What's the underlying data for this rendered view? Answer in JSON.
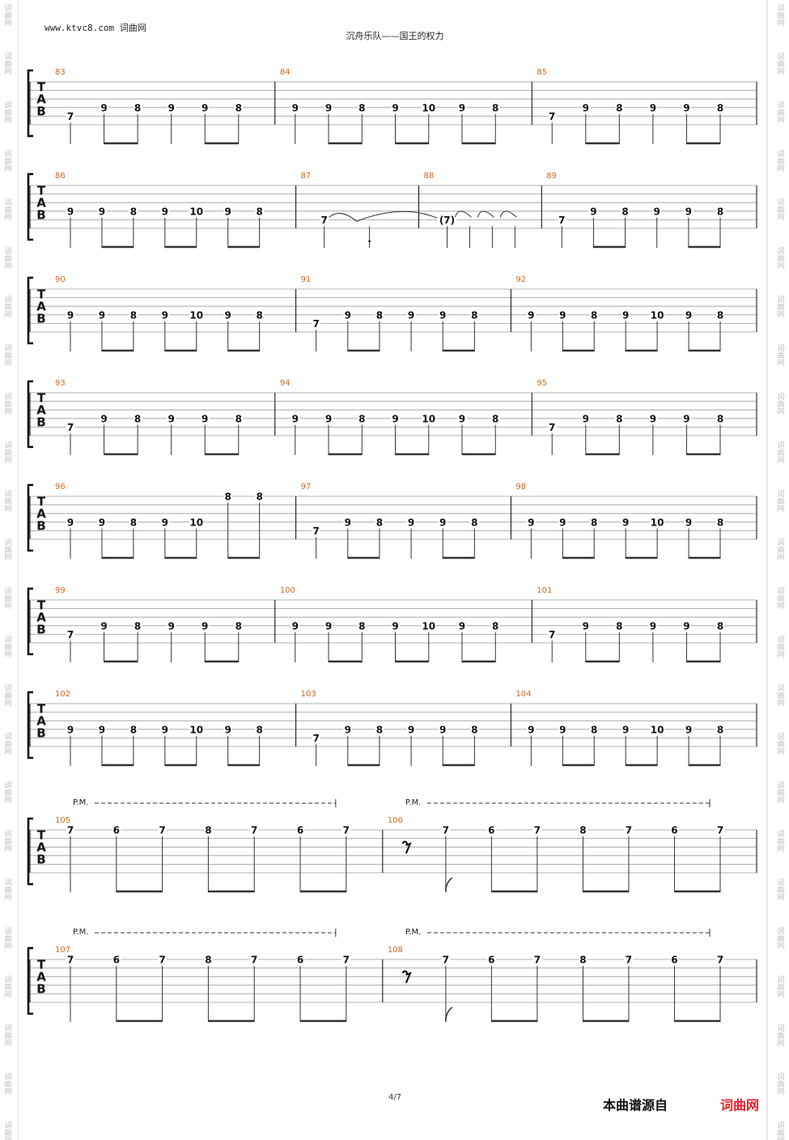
{
  "header": {
    "site": "www.ktvc8.com 词曲网",
    "title": "沉舟乐队——国王的权力"
  },
  "watermark": "词曲网",
  "tab_letters": [
    "T",
    "A",
    "B"
  ],
  "systems": [
    {
      "measures": [
        {
          "number": 83,
          "notes": [
            {
              "fret": 7,
              "string": 5
            },
            {
              "fret": 9,
              "string": 4
            },
            {
              "fret": 8,
              "string": 4
            },
            {
              "fret": 9,
              "string": 4
            },
            {
              "fret": 9,
              "string": 4
            },
            {
              "fret": 8,
              "string": 4
            }
          ]
        },
        {
          "number": 84,
          "notes": [
            {
              "fret": 9,
              "string": 4
            },
            {
              "fret": 9,
              "string": 4
            },
            {
              "fret": 8,
              "string": 4
            },
            {
              "fret": 9,
              "string": 4
            },
            {
              "fret": 10,
              "string": 4
            },
            {
              "fret": 9,
              "string": 4
            },
            {
              "fret": 8,
              "string": 4
            }
          ]
        },
        {
          "number": 85,
          "notes": [
            {
              "fret": 7,
              "string": 5
            },
            {
              "fret": 9,
              "string": 4
            },
            {
              "fret": 8,
              "string": 4
            },
            {
              "fret": 9,
              "string": 4
            },
            {
              "fret": 9,
              "string": 4
            },
            {
              "fret": 8,
              "string": 4
            }
          ]
        }
      ]
    },
    {
      "measures": [
        {
          "number": 86,
          "notes": [
            {
              "fret": 9,
              "string": 4
            },
            {
              "fret": 9,
              "string": 4
            },
            {
              "fret": 8,
              "string": 4
            },
            {
              "fret": 9,
              "string": 4
            },
            {
              "fret": 10,
              "string": 4
            },
            {
              "fret": 9,
              "string": 4
            },
            {
              "fret": 8,
              "string": 4
            }
          ]
        },
        {
          "number": 87,
          "notes": [
            {
              "fret": 7,
              "string": 5
            }
          ]
        },
        {
          "number": 88,
          "notes": [
            {
              "fret": "(7)",
              "string": 5
            }
          ]
        },
        {
          "number": 89,
          "notes": [
            {
              "fret": 7,
              "string": 5
            },
            {
              "fret": 9,
              "string": 4
            },
            {
              "fret": 8,
              "string": 4
            },
            {
              "fret": 9,
              "string": 4
            },
            {
              "fret": 9,
              "string": 4
            },
            {
              "fret": 8,
              "string": 4
            }
          ]
        }
      ]
    },
    {
      "measures": [
        {
          "number": 90,
          "notes": [
            {
              "fret": 9,
              "string": 4
            },
            {
              "fret": 9,
              "string": 4
            },
            {
              "fret": 8,
              "string": 4
            },
            {
              "fret": 9,
              "string": 4
            },
            {
              "fret": 10,
              "string": 4
            },
            {
              "fret": 9,
              "string": 4
            },
            {
              "fret": 8,
              "string": 4
            }
          ]
        },
        {
          "number": 91,
          "notes": [
            {
              "fret": 7,
              "string": 5
            },
            {
              "fret": 9,
              "string": 4
            },
            {
              "fret": 8,
              "string": 4
            },
            {
              "fret": 9,
              "string": 4
            },
            {
              "fret": 9,
              "string": 4
            },
            {
              "fret": 8,
              "string": 4
            }
          ]
        },
        {
          "number": 92,
          "notes": [
            {
              "fret": 9,
              "string": 4
            },
            {
              "fret": 9,
              "string": 4
            },
            {
              "fret": 8,
              "string": 4
            },
            {
              "fret": 9,
              "string": 4
            },
            {
              "fret": 10,
              "string": 4
            },
            {
              "fret": 9,
              "string": 4
            },
            {
              "fret": 8,
              "string": 4
            }
          ]
        }
      ]
    },
    {
      "measures": [
        {
          "number": 93,
          "notes": [
            {
              "fret": 7,
              "string": 5
            },
            {
              "fret": 9,
              "string": 4
            },
            {
              "fret": 8,
              "string": 4
            },
            {
              "fret": 9,
              "string": 4
            },
            {
              "fret": 9,
              "string": 4
            },
            {
              "fret": 8,
              "string": 4
            }
          ]
        },
        {
          "number": 94,
          "notes": [
            {
              "fret": 9,
              "string": 4
            },
            {
              "fret": 9,
              "string": 4
            },
            {
              "fret": 8,
              "string": 4
            },
            {
              "fret": 9,
              "string": 4
            },
            {
              "fret": 10,
              "string": 4
            },
            {
              "fret": 9,
              "string": 4
            },
            {
              "fret": 8,
              "string": 4
            }
          ]
        },
        {
          "number": 95,
          "notes": [
            {
              "fret": 7,
              "string": 5
            },
            {
              "fret": 9,
              "string": 4
            },
            {
              "fret": 8,
              "string": 4
            },
            {
              "fret": 9,
              "string": 4
            },
            {
              "fret": 9,
              "string": 4
            },
            {
              "fret": 8,
              "string": 4
            }
          ]
        }
      ]
    },
    {
      "measures": [
        {
          "number": 96,
          "notes": [
            {
              "fret": 9,
              "string": 4
            },
            {
              "fret": 9,
              "string": 4
            },
            {
              "fret": 8,
              "string": 4
            },
            {
              "fret": 9,
              "string": 4
            },
            {
              "fret": 10,
              "string": 4
            },
            {
              "fret": 8,
              "string": 1
            },
            {
              "fret": 8,
              "string": 1
            }
          ]
        },
        {
          "number": 97,
          "notes": [
            {
              "fret": 7,
              "string": 5
            },
            {
              "fret": 9,
              "string": 4
            },
            {
              "fret": 8,
              "string": 4
            },
            {
              "fret": 9,
              "string": 4
            },
            {
              "fret": 9,
              "string": 4
            },
            {
              "fret": 8,
              "string": 4
            }
          ]
        },
        {
          "number": 98,
          "notes": [
            {
              "fret": 9,
              "string": 4
            },
            {
              "fret": 9,
              "string": 4
            },
            {
              "fret": 8,
              "string": 4
            },
            {
              "fret": 9,
              "string": 4
            },
            {
              "fret": 10,
              "string": 4
            },
            {
              "fret": 9,
              "string": 4
            },
            {
              "fret": 8,
              "string": 4
            }
          ]
        }
      ]
    },
    {
      "measures": [
        {
          "number": 99,
          "notes": [
            {
              "fret": 7,
              "string": 5
            },
            {
              "fret": 9,
              "string": 4
            },
            {
              "fret": 8,
              "string": 4
            },
            {
              "fret": 9,
              "string": 4
            },
            {
              "fret": 9,
              "string": 4
            },
            {
              "fret": 8,
              "string": 4
            }
          ]
        },
        {
          "number": 100,
          "notes": [
            {
              "fret": 9,
              "string": 4
            },
            {
              "fret": 9,
              "string": 4
            },
            {
              "fret": 8,
              "string": 4
            },
            {
              "fret": 9,
              "string": 4
            },
            {
              "fret": 10,
              "string": 4
            },
            {
              "fret": 9,
              "string": 4
            },
            {
              "fret": 8,
              "string": 4
            }
          ]
        },
        {
          "number": 101,
          "notes": [
            {
              "fret": 7,
              "string": 5
            },
            {
              "fret": 9,
              "string": 4
            },
            {
              "fret": 8,
              "string": 4
            },
            {
              "fret": 9,
              "string": 4
            },
            {
              "fret": 9,
              "string": 4
            },
            {
              "fret": 8,
              "string": 4
            }
          ]
        }
      ]
    },
    {
      "measures": [
        {
          "number": 102,
          "notes": [
            {
              "fret": 9,
              "string": 4
            },
            {
              "fret": 9,
              "string": 4
            },
            {
              "fret": 8,
              "string": 4
            },
            {
              "fret": 9,
              "string": 4
            },
            {
              "fret": 10,
              "string": 4
            },
            {
              "fret": 9,
              "string": 4
            },
            {
              "fret": 8,
              "string": 4
            }
          ]
        },
        {
          "number": 103,
          "notes": [
            {
              "fret": 7,
              "string": 5
            },
            {
              "fret": 9,
              "string": 4
            },
            {
              "fret": 8,
              "string": 4
            },
            {
              "fret": 9,
              "string": 4
            },
            {
              "fret": 9,
              "string": 4
            },
            {
              "fret": 8,
              "string": 4
            }
          ]
        },
        {
          "number": 104,
          "notes": [
            {
              "fret": 9,
              "string": 4
            },
            {
              "fret": 9,
              "string": 4
            },
            {
              "fret": 8,
              "string": 4
            },
            {
              "fret": 9,
              "string": 4
            },
            {
              "fret": 10,
              "string": 4
            },
            {
              "fret": 9,
              "string": 4
            },
            {
              "fret": 8,
              "string": 4
            }
          ]
        }
      ]
    },
    {
      "measures": [
        {
          "number": 105,
          "palm_mute": "P.M.",
          "notes": [
            {
              "fret": 7,
              "string": 1
            },
            {
              "fret": 6,
              "string": 1
            },
            {
              "fret": 7,
              "string": 1
            },
            {
              "fret": 8,
              "string": 1
            },
            {
              "fret": 7,
              "string": 1
            },
            {
              "fret": 6,
              "string": 1
            },
            {
              "fret": 7,
              "string": 1
            }
          ]
        },
        {
          "number": 106,
          "palm_mute": "P.M.",
          "lead_rest": true,
          "notes": [
            {
              "fret": 7,
              "string": 1
            },
            {
              "fret": 6,
              "string": 1
            },
            {
              "fret": 7,
              "string": 1
            },
            {
              "fret": 8,
              "string": 1
            },
            {
              "fret": 7,
              "string": 1
            },
            {
              "fret": 6,
              "string": 1
            },
            {
              "fret": 7,
              "string": 1
            }
          ]
        }
      ]
    },
    {
      "measures": [
        {
          "number": 107,
          "palm_mute": "P.M.",
          "notes": [
            {
              "fret": 7,
              "string": 1
            },
            {
              "fret": 6,
              "string": 1
            },
            {
              "fret": 7,
              "string": 1
            },
            {
              "fret": 8,
              "string": 1
            },
            {
              "fret": 7,
              "string": 1
            },
            {
              "fret": 6,
              "string": 1
            },
            {
              "fret": 7,
              "string": 1
            }
          ]
        },
        {
          "number": 108,
          "palm_mute": "P.M.",
          "lead_rest": true,
          "notes": [
            {
              "fret": 7,
              "string": 1
            },
            {
              "fret": 6,
              "string": 1
            },
            {
              "fret": 7,
              "string": 1
            },
            {
              "fret": 8,
              "string": 1
            },
            {
              "fret": 7,
              "string": 1
            },
            {
              "fret": 6,
              "string": 1
            },
            {
              "fret": 7,
              "string": 1
            }
          ]
        }
      ]
    }
  ],
  "footer": {
    "page": "4/7",
    "source": "本曲谱源自",
    "brand": "词曲网"
  }
}
